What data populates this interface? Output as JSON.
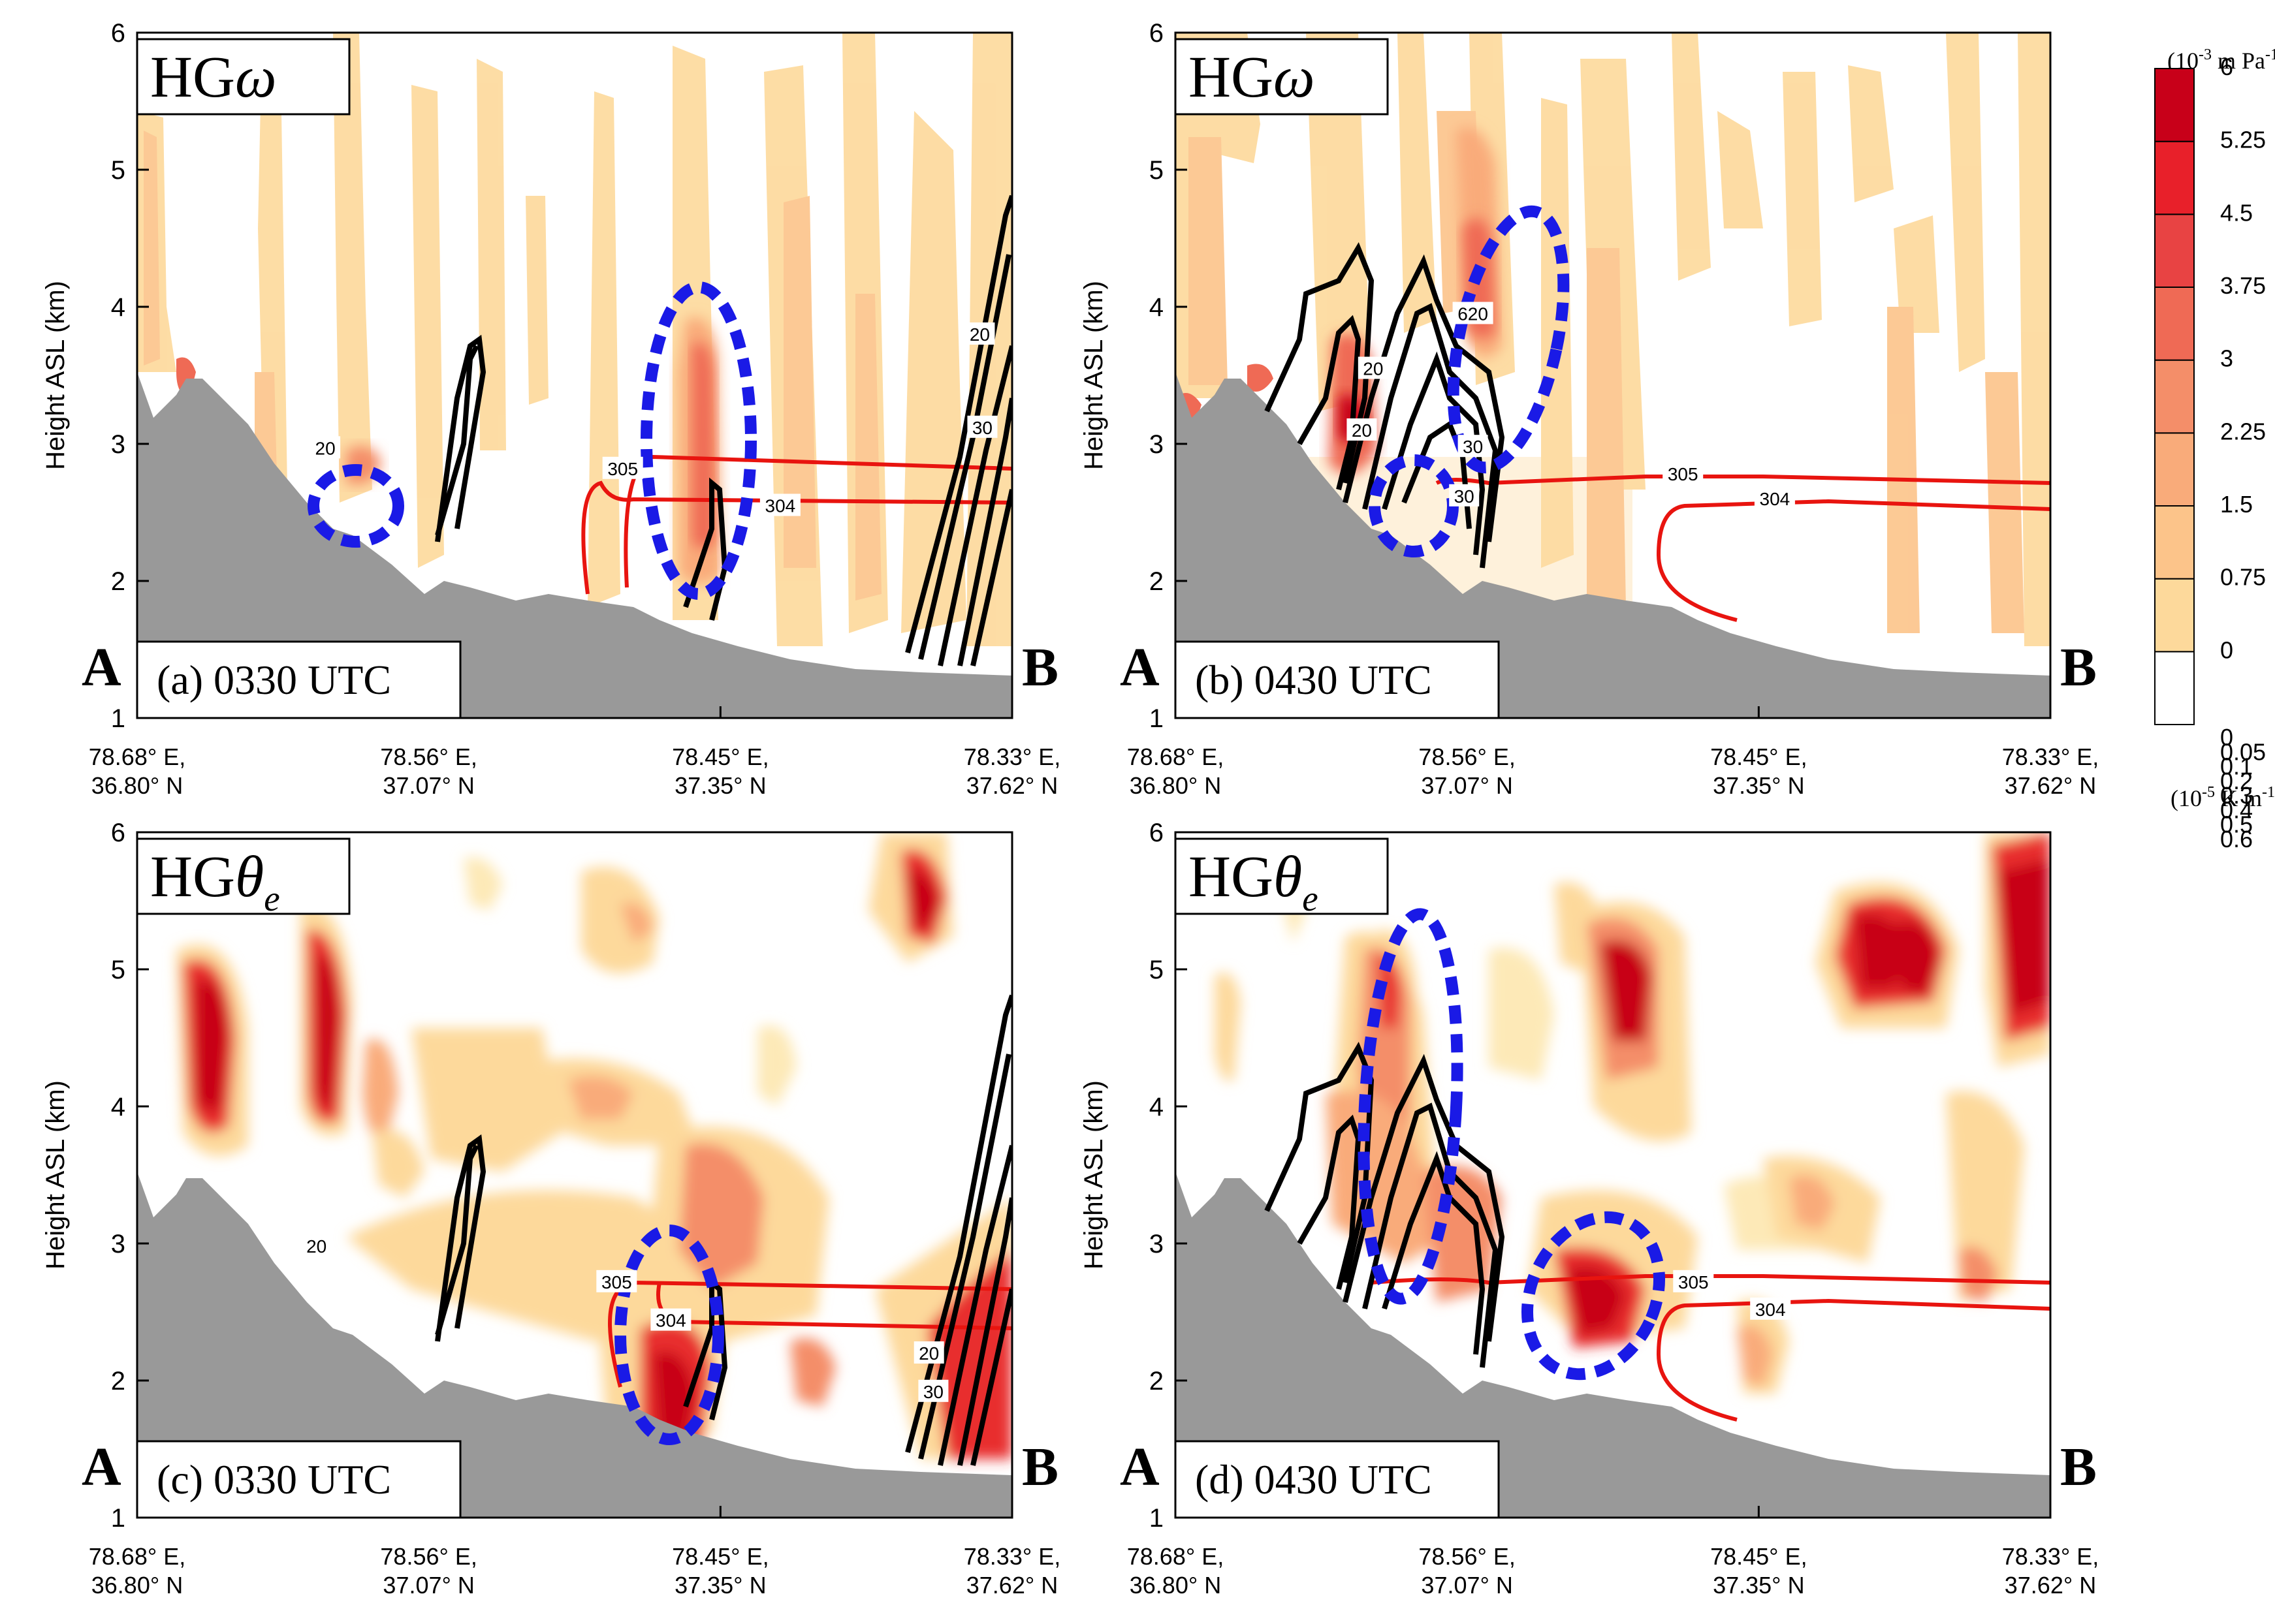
{
  "colors": {
    "terrain": "#999999",
    "red_contour": "#e8140f",
    "black_contour": "#000000",
    "ellipse": "#1a1ae6"
  },
  "chart_data": [
    {
      "id": "a",
      "type": "contour-cross-section",
      "title": "HGω",
      "title_main": "HG",
      "title_symbol": "ω",
      "title_sub": "",
      "caption": "(a)  0330 UTC",
      "ylabel": "Height ASL (km)",
      "ylim": [
        1,
        6
      ],
      "yticks": [
        "1",
        "2",
        "3",
        "4",
        "5",
        "6"
      ],
      "xticks": [
        [
          "78.68° E,",
          "36.80° N"
        ],
        [
          "78.56° E,",
          "37.07° N"
        ],
        [
          "78.45° E,",
          "37.35° N"
        ],
        [
          "78.33° E,",
          "37.62° N"
        ]
      ],
      "end_labels": [
        "A",
        "B"
      ],
      "contour_labels": [
        {
          "text": "20",
          "x": 0.215,
          "y": 2.97
        },
        {
          "text": "305",
          "x": 0.555,
          "y": 2.82
        },
        {
          "text": "304",
          "x": 0.735,
          "y": 2.55
        },
        {
          "text": "20",
          "x": 0.963,
          "y": 3.8
        },
        {
          "text": "30",
          "x": 0.966,
          "y": 3.12
        }
      ]
    },
    {
      "id": "b",
      "type": "contour-cross-section",
      "title": "HGω",
      "title_main": "HG",
      "title_symbol": "ω",
      "title_sub": "",
      "caption": "(b)  0430 UTC",
      "ylabel": "Height ASL (km)",
      "ylim": [
        1,
        6
      ],
      "yticks": [
        "1",
        "2",
        "3",
        "4",
        "5",
        "6"
      ],
      "xticks": [
        [
          "78.68° E,",
          "36.80° N"
        ],
        [
          "78.56° E,",
          "37.07° N"
        ],
        [
          "78.45° E,",
          "37.35° N"
        ],
        [
          "78.33° E,",
          "37.62° N"
        ]
      ],
      "end_labels": [
        "A",
        "B"
      ],
      "contour_labels": [
        {
          "text": "20",
          "x": 0.226,
          "y": 3.55
        },
        {
          "text": "20",
          "x": 0.213,
          "y": 3.1
        },
        {
          "text": "620",
          "x": 0.34,
          "y": 3.95
        },
        {
          "text": "30",
          "x": 0.34,
          "y": 2.98
        },
        {
          "text": "30",
          "x": 0.33,
          "y": 2.62
        },
        {
          "text": "305",
          "x": 0.58,
          "y": 2.78
        },
        {
          "text": "304",
          "x": 0.685,
          "y": 2.6
        }
      ]
    },
    {
      "id": "c",
      "type": "contour-cross-section",
      "title": "HGθe",
      "title_main": "HG",
      "title_symbol": "θ",
      "title_sub": "e",
      "caption": "(c)  0330 UTC",
      "ylabel": "Height ASL (km)",
      "ylim": [
        1,
        6
      ],
      "yticks": [
        "1",
        "2",
        "3",
        "4",
        "5",
        "6"
      ],
      "xticks": [
        [
          "78.68° E,",
          "36.80° N"
        ],
        [
          "78.56° E,",
          "37.07° N"
        ],
        [
          "78.45° E,",
          "37.35° N"
        ],
        [
          "78.33° E,",
          "37.62° N"
        ]
      ],
      "end_labels": [
        "A",
        "B"
      ],
      "contour_labels": [
        {
          "text": "20",
          "x": 0.205,
          "y": 2.98
        },
        {
          "text": "305",
          "x": 0.548,
          "y": 2.72
        },
        {
          "text": "304",
          "x": 0.61,
          "y": 2.44
        },
        {
          "text": "20",
          "x": 0.905,
          "y": 2.2
        },
        {
          "text": "30",
          "x": 0.91,
          "y": 1.92
        }
      ]
    },
    {
      "id": "d",
      "type": "contour-cross-section",
      "title": "HGθe",
      "title_main": "HG",
      "title_symbol": "θ",
      "title_sub": "e",
      "caption": "(d)  0430 UTC",
      "ylabel": "Height ASL (km)",
      "ylim": [
        1,
        6
      ],
      "yticks": [
        "1",
        "2",
        "3",
        "4",
        "5",
        "6"
      ],
      "xticks": [
        [
          "78.68° E,",
          "36.80° N"
        ],
        [
          "78.56° E,",
          "37.07° N"
        ],
        [
          "78.45° E,",
          "37.35° N"
        ],
        [
          "78.33° E,",
          "37.62° N"
        ]
      ],
      "end_labels": [
        "A",
        "B"
      ],
      "contour_labels": [
        {
          "text": "305",
          "x": 0.592,
          "y": 2.72
        },
        {
          "text": "304",
          "x": 0.68,
          "y": 2.52
        }
      ]
    }
  ],
  "colorbars": [
    {
      "unit_prefix": "(10",
      "unit_exp": "-3",
      "unit_rest": " m Pa",
      "unit_exp2": "-1",
      "unit_close": ")",
      "levels": [
        "0",
        "0.75",
        "1.5",
        "2.25",
        "3",
        "3.75",
        "4.5",
        "5.25",
        "6"
      ],
      "colors": [
        "#ffffff",
        "#fdd99b",
        "#fcc48a",
        "#f9ab7a",
        "#f48e69",
        "#ef6a55",
        "#e84343",
        "#e8202a",
        "#c80019"
      ]
    },
    {
      "unit_prefix": "(10",
      "unit_exp": "-5",
      "unit_rest": " K m",
      "unit_exp2": "-1",
      "unit_close": ")",
      "levels": [
        "0",
        "0.05",
        "0.1",
        "0.2",
        "0.3",
        "0.4",
        "0.5",
        "0.6"
      ],
      "colors": [
        "#ffffff",
        "#fff7de",
        "#fde9b7",
        "#fdd99b",
        "#f9ab7a",
        "#f07057",
        "#e82e2e",
        "#e8202a",
        "#c80019"
      ]
    }
  ]
}
